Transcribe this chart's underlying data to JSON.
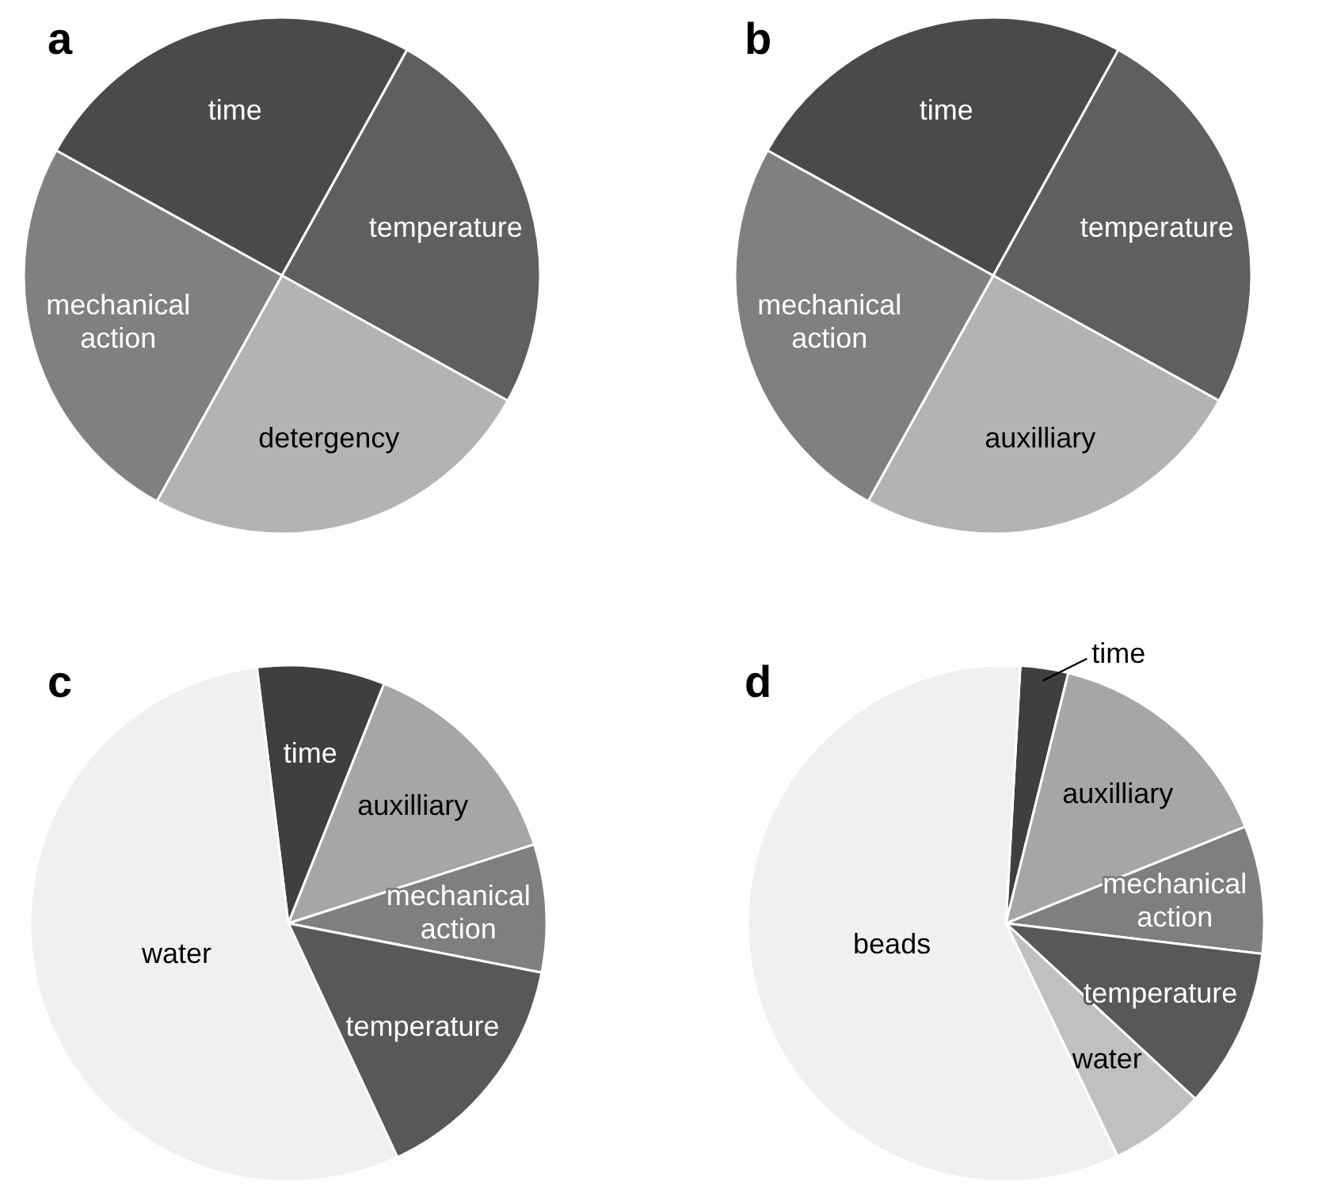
{
  "chart_data": [
    {
      "type": "pie",
      "title": "a",
      "categories": [
        "time",
        "temperature",
        "detergency",
        "mechanical action"
      ],
      "values": [
        25,
        25,
        25,
        25
      ],
      "colors": [
        "#4a4a4a",
        "#5f5f5f",
        "#b3b3b3",
        "#808080"
      ]
    },
    {
      "type": "pie",
      "title": "b",
      "categories": [
        "time",
        "temperature",
        "auxilliary",
        "mechanical action"
      ],
      "values": [
        25,
        25,
        25,
        25
      ],
      "colors": [
        "#4a4a4a",
        "#5f5f5f",
        "#b3b3b3",
        "#808080"
      ]
    },
    {
      "type": "pie",
      "title": "c",
      "categories": [
        "time",
        "auxilliary",
        "mechanical action",
        "temperature",
        "water"
      ],
      "values": [
        8,
        14,
        8,
        15,
        55
      ],
      "colors": [
        "#3f3f3f",
        "#a6a6a6",
        "#7f7f7f",
        "#585858",
        "#f0f0f0"
      ]
    },
    {
      "type": "pie",
      "title": "d",
      "categories": [
        "time",
        "auxilliary",
        "mechanical action",
        "temperature",
        "water",
        "beads"
      ],
      "values": [
        3,
        15,
        8,
        10,
        6,
        58
      ],
      "colors": [
        "#3f3f3f",
        "#a6a6a6",
        "#7f7f7f",
        "#585858",
        "#c0c0c0",
        "#f0f0f0"
      ]
    }
  ]
}
